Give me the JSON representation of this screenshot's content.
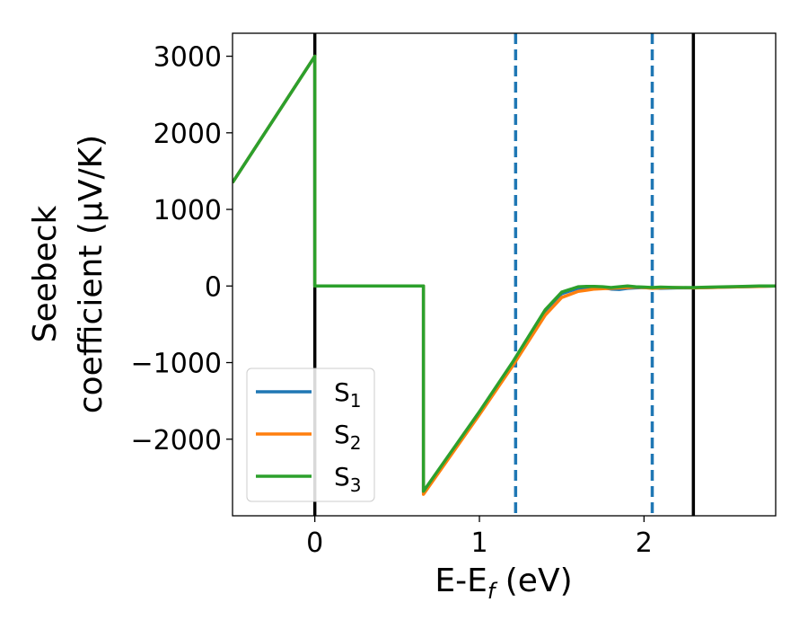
{
  "chart_data": {
    "type": "line",
    "title": "",
    "xlabel_main": "E-E",
    "xlabel_sub": "f",
    "xlabel_unit": " (eV)",
    "ylabel_line1": "Seebeck",
    "ylabel_line2": "coefficient  (μV/K)",
    "xlim": [
      -0.5,
      2.8
    ],
    "ylim": [
      -3000,
      3300
    ],
    "xticks": [
      0,
      1,
      2
    ],
    "xtick_labels": [
      "0",
      "1",
      "2"
    ],
    "yticks": [
      3000,
      2000,
      1000,
      0,
      -1000,
      -2000
    ],
    "ytick_labels": [
      "3000",
      "2000",
      "1000",
      "0",
      "−1000",
      "−2000"
    ],
    "grid": false,
    "legend_position": "lower-left",
    "vlines_solid": [
      0.0,
      2.3
    ],
    "vlines_dashed": [
      1.22,
      2.05
    ],
    "colors": {
      "vline_solid": "#000000",
      "vline_dashed": "#1f77b4"
    },
    "series": [
      {
        "name": "S",
        "sub": "1",
        "color": "#1f77b4",
        "x": [
          -0.5,
          0.0,
          0.0,
          0.66,
          0.66,
          1.0,
          1.2,
          1.4,
          1.5,
          1.6,
          1.7,
          1.75,
          1.8,
          1.85,
          1.9,
          1.95,
          2.0,
          2.05,
          2.1,
          2.2,
          2.3,
          2.4,
          2.5,
          2.6,
          2.7,
          2.8
        ],
        "y": [
          1350,
          3000,
          0,
          0,
          -2700,
          -1650,
          -1020,
          -330,
          -100,
          -30,
          -15,
          -25,
          -40,
          -45,
          -30,
          -25,
          -20,
          -25,
          -30,
          -25,
          -25,
          -20,
          -15,
          -10,
          -5,
          0
        ]
      },
      {
        "name": "S",
        "sub": "2",
        "color": "#ff7f0e",
        "x": [
          -0.5,
          0.0,
          0.0,
          0.66,
          0.66,
          1.0,
          1.2,
          1.4,
          1.5,
          1.6,
          1.65,
          1.7,
          1.75,
          1.8,
          1.85,
          1.9,
          1.95,
          2.0,
          2.05,
          2.1,
          2.2,
          2.3,
          2.4,
          2.5,
          2.6,
          2.7,
          2.8
        ],
        "y": [
          1350,
          3000,
          0,
          0,
          -2720,
          -1680,
          -1050,
          -380,
          -150,
          -70,
          -55,
          -40,
          -35,
          -30,
          -25,
          -20,
          -15,
          -20,
          -30,
          -25,
          -20,
          -25,
          -20,
          -15,
          -10,
          -5,
          0
        ]
      },
      {
        "name": "S",
        "sub": "3",
        "color": "#2ca02c",
        "x": [
          -0.5,
          0.0,
          0.0,
          0.66,
          0.66,
          1.0,
          1.2,
          1.4,
          1.5,
          1.6,
          1.65,
          1.7,
          1.75,
          1.8,
          1.85,
          1.9,
          1.95,
          2.0,
          2.05,
          2.1,
          2.2,
          2.3,
          2.4,
          2.5,
          2.6,
          2.7,
          2.8
        ],
        "y": [
          1350,
          3000,
          0,
          0,
          -2680,
          -1640,
          -1000,
          -310,
          -80,
          -10,
          -5,
          -5,
          -10,
          -20,
          -10,
          0,
          -10,
          -15,
          -20,
          -15,
          -20,
          -20,
          -15,
          -10,
          -5,
          0,
          0
        ]
      }
    ]
  }
}
